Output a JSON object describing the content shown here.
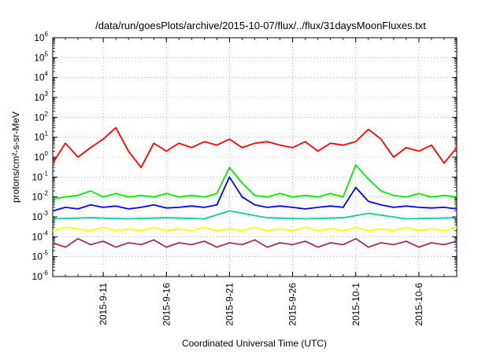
{
  "chart_data": {
    "type": "line",
    "title": "/data/run/goesPlots/archive/2015-10-07/flux/../flux/31daysMoonFluxes.txt",
    "xlabel": "Coordinated Universal Time (UTC)",
    "ylabel": "protons/cm²-s-sr-MeV",
    "y_scale": "log",
    "ylim": [
      1e-06,
      1000000.0
    ],
    "xlim": [
      "2015-09-07",
      "2015-10-09"
    ],
    "grid": true,
    "y_ticks": [
      {
        "base": "10",
        "exp": "6"
      },
      {
        "base": "10",
        "exp": "5"
      },
      {
        "base": "10",
        "exp": "4"
      },
      {
        "base": "10",
        "exp": "3"
      },
      {
        "base": "10",
        "exp": "2"
      },
      {
        "base": "10",
        "exp": "1"
      },
      {
        "base": "10",
        "exp": "0"
      },
      {
        "base": "10",
        "exp": "-1"
      },
      {
        "base": "10",
        "exp": "-2"
      },
      {
        "base": "10",
        "exp": "-3"
      },
      {
        "base": "10",
        "exp": "-4"
      },
      {
        "base": "10",
        "exp": "-5"
      },
      {
        "base": "10",
        "exp": "-6"
      }
    ],
    "x_ticks": [
      "2015-9-11",
      "2015-9-16",
      "2015-9-21",
      "2015-9-26",
      "2015-10-1",
      "2015-10-6"
    ],
    "series": [
      {
        "color": "#ff0000",
        "x": [
          "2015-09-07",
          "2015-09-08",
          "2015-09-09",
          "2015-09-10",
          "2015-09-11",
          "2015-09-12",
          "2015-09-13",
          "2015-09-14",
          "2015-09-15",
          "2015-09-16",
          "2015-09-17",
          "2015-09-18",
          "2015-09-19",
          "2015-09-20",
          "2015-09-21",
          "2015-09-22",
          "2015-09-23",
          "2015-09-24",
          "2015-09-25",
          "2015-09-26",
          "2015-09-27",
          "2015-09-28",
          "2015-09-29",
          "2015-09-30",
          "2015-10-01",
          "2015-10-02",
          "2015-10-03",
          "2015-10-04",
          "2015-10-05",
          "2015-10-06",
          "2015-10-07",
          "2015-10-08",
          "2015-10-09"
        ],
        "y": [
          0.5,
          5,
          1,
          3,
          8,
          30,
          2,
          0.3,
          5,
          2,
          5,
          3,
          6,
          4,
          8,
          3,
          5,
          6,
          4,
          3,
          6,
          2,
          5,
          4,
          6,
          25,
          8,
          1,
          3,
          2,
          4,
          0.5,
          3
        ]
      },
      {
        "color": "#00ee00",
        "x": [
          "2015-09-07",
          "2015-09-08",
          "2015-09-09",
          "2015-09-10",
          "2015-09-11",
          "2015-09-12",
          "2015-09-13",
          "2015-09-14",
          "2015-09-15",
          "2015-09-16",
          "2015-09-17",
          "2015-09-18",
          "2015-09-19",
          "2015-09-20",
          "2015-09-21",
          "2015-09-22",
          "2015-09-23",
          "2015-09-24",
          "2015-09-25",
          "2015-09-26",
          "2015-09-27",
          "2015-09-28",
          "2015-09-29",
          "2015-09-30",
          "2015-10-01",
          "2015-10-02",
          "2015-10-03",
          "2015-10-04",
          "2015-10-05",
          "2015-10-06",
          "2015-10-07",
          "2015-10-08",
          "2015-10-09"
        ],
        "y": [
          0.008,
          0.01,
          0.012,
          0.02,
          0.01,
          0.015,
          0.01,
          0.012,
          0.01,
          0.015,
          0.01,
          0.012,
          0.01,
          0.015,
          0.3,
          0.05,
          0.012,
          0.01,
          0.015,
          0.01,
          0.012,
          0.01,
          0.015,
          0.01,
          0.4,
          0.08,
          0.02,
          0.012,
          0.01,
          0.015,
          0.01,
          0.012,
          0.01
        ]
      },
      {
        "color": "#0000ff",
        "x": [
          "2015-09-07",
          "2015-09-08",
          "2015-09-09",
          "2015-09-10",
          "2015-09-11",
          "2015-09-12",
          "2015-09-13",
          "2015-09-14",
          "2015-09-15",
          "2015-09-16",
          "2015-09-17",
          "2015-09-18",
          "2015-09-19",
          "2015-09-20",
          "2015-09-21",
          "2015-09-22",
          "2015-09-23",
          "2015-09-24",
          "2015-09-25",
          "2015-09-26",
          "2015-09-27",
          "2015-09-28",
          "2015-09-29",
          "2015-09-30",
          "2015-10-01",
          "2015-10-02",
          "2015-10-03",
          "2015-10-04",
          "2015-10-05",
          "2015-10-06",
          "2015-10-07",
          "2015-10-08",
          "2015-10-09"
        ],
        "y": [
          0.002,
          0.003,
          0.0025,
          0.004,
          0.003,
          0.0035,
          0.0025,
          0.003,
          0.004,
          0.0028,
          0.003,
          0.0035,
          0.003,
          0.004,
          0.1,
          0.01,
          0.004,
          0.003,
          0.0035,
          0.003,
          0.0025,
          0.003,
          0.0035,
          0.003,
          0.03,
          0.006,
          0.004,
          0.003,
          0.0035,
          0.003,
          0.0028,
          0.003,
          0.0025
        ]
      },
      {
        "color": "#00d0a0",
        "x": [
          "2015-09-07",
          "2015-09-10",
          "2015-09-13",
          "2015-09-16",
          "2015-09-19",
          "2015-09-21",
          "2015-09-24",
          "2015-09-27",
          "2015-09-30",
          "2015-10-02",
          "2015-10-05",
          "2015-10-09"
        ],
        "y": [
          0.0008,
          0.0009,
          0.0008,
          0.0009,
          0.0008,
          0.002,
          0.0009,
          0.0008,
          0.0009,
          0.0015,
          0.0008,
          0.0009
        ]
      },
      {
        "color": "#ffff00",
        "x": [
          "2015-09-07",
          "2015-09-08",
          "2015-09-09",
          "2015-09-10",
          "2015-09-11",
          "2015-09-12",
          "2015-09-13",
          "2015-09-14",
          "2015-09-15",
          "2015-09-16",
          "2015-09-17",
          "2015-09-18",
          "2015-09-19",
          "2015-09-20",
          "2015-09-21",
          "2015-09-22",
          "2015-09-23",
          "2015-09-24",
          "2015-09-25",
          "2015-09-26",
          "2015-09-27",
          "2015-09-28",
          "2015-09-29",
          "2015-09-30",
          "2015-10-01",
          "2015-10-02",
          "2015-10-03",
          "2015-10-04",
          "2015-10-05",
          "2015-10-06",
          "2015-10-07",
          "2015-10-08",
          "2015-10-09"
        ],
        "y": [
          0.0002,
          0.0003,
          0.00025,
          0.0002,
          0.0003,
          0.0002,
          0.00025,
          0.0002,
          0.0003,
          0.0002,
          0.00025,
          0.0002,
          0.0003,
          0.0002,
          0.00025,
          0.0002,
          0.0003,
          0.0002,
          0.00025,
          0.0002,
          0.0003,
          0.0002,
          0.00025,
          0.0002,
          0.0003,
          0.0002,
          0.00025,
          0.0002,
          0.0003,
          0.0002,
          0.00025,
          0.0002,
          0.0003
        ]
      },
      {
        "color": "#993366",
        "x": [
          "2015-09-07",
          "2015-09-08",
          "2015-09-09",
          "2015-09-10",
          "2015-09-11",
          "2015-09-12",
          "2015-09-13",
          "2015-09-14",
          "2015-09-15",
          "2015-09-16",
          "2015-09-17",
          "2015-09-18",
          "2015-09-19",
          "2015-09-20",
          "2015-09-21",
          "2015-09-22",
          "2015-09-23",
          "2015-09-24",
          "2015-09-25",
          "2015-09-26",
          "2015-09-27",
          "2015-09-28",
          "2015-09-29",
          "2015-09-30",
          "2015-10-01",
          "2015-10-02",
          "2015-10-03",
          "2015-10-04",
          "2015-10-05",
          "2015-10-06",
          "2015-10-07",
          "2015-10-08",
          "2015-10-09"
        ],
        "y": [
          5e-05,
          3e-05,
          8e-05,
          4e-05,
          6e-05,
          3e-05,
          5e-05,
          4e-05,
          7e-05,
          3e-05,
          5e-05,
          4e-05,
          6e-05,
          3e-05,
          5e-05,
          4e-05,
          7e-05,
          3e-05,
          5e-05,
          4e-05,
          6e-05,
          3e-05,
          5e-05,
          4e-05,
          8e-05,
          3e-05,
          5e-05,
          4e-05,
          6e-05,
          3e-05,
          5e-05,
          4e-05,
          6e-05
        ]
      }
    ]
  }
}
